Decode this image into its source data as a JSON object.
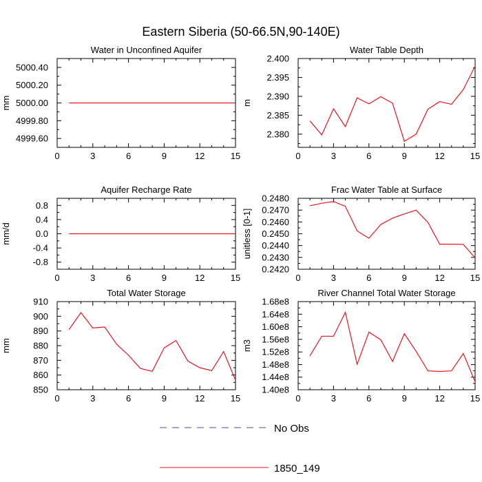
{
  "figure": {
    "title": "Eastern Siberia (50-66.5N,90-140E)",
    "legend": [
      {
        "label": "No Obs",
        "color": "#4a4aa6",
        "dashed": true
      },
      {
        "label": "1850_149",
        "color": "#e8141c",
        "dashed": false
      }
    ]
  },
  "chart_data": [
    {
      "type": "line",
      "title": "Water in Unconfined Aquifer",
      "ylabel": "mm",
      "xlim": [
        0,
        15
      ],
      "ylim": [
        4999.5,
        5000.5
      ],
      "xticks": [
        0,
        3,
        6,
        9,
        12,
        15
      ],
      "xtick_labels": [
        "0",
        "3",
        "6",
        "9",
        "12",
        "15"
      ],
      "yticks": [
        4999.6,
        4999.8,
        5000.0,
        5000.2,
        5000.4
      ],
      "ytick_labels": [
        "4999.60",
        "4999.80",
        "5000.00",
        "5000.20",
        "5000.40"
      ],
      "series": [
        {
          "name": "1850_149",
          "color": "#e8141c",
          "x": [
            1,
            2,
            3,
            4,
            5,
            6,
            7,
            8,
            9,
            10,
            11,
            12,
            13,
            14,
            15
          ],
          "y": [
            5000,
            5000,
            5000,
            5000,
            5000,
            5000,
            5000,
            5000,
            5000,
            5000,
            5000,
            5000,
            5000,
            5000,
            5000
          ]
        }
      ]
    },
    {
      "type": "line",
      "title": "Water Table Depth",
      "ylabel": "m",
      "xlim": [
        0,
        15
      ],
      "ylim": [
        2.3765,
        2.4
      ],
      "xticks": [
        0,
        3,
        6,
        9,
        12,
        15
      ],
      "xtick_labels": [
        "0",
        "3",
        "6",
        "9",
        "12",
        "15"
      ],
      "yticks": [
        2.38,
        2.385,
        2.39,
        2.395,
        2.4
      ],
      "ytick_labels": [
        "2.380",
        "2.385",
        "2.390",
        "2.395",
        "2.400"
      ],
      "series": [
        {
          "name": "1850_149",
          "color": "#e8141c",
          "x": [
            1,
            2,
            3,
            4,
            5,
            6,
            7,
            8,
            9,
            10,
            11,
            12,
            13,
            14,
            15
          ],
          "y": [
            2.3835,
            2.3798,
            2.3867,
            2.382,
            2.3896,
            2.388,
            2.3899,
            2.3882,
            2.3781,
            2.38,
            2.3866,
            2.3886,
            2.3879,
            2.3918,
            2.398
          ]
        }
      ]
    },
    {
      "type": "line",
      "title": "Aquifer Recharge Rate",
      "ylabel": "mm/d",
      "xlim": [
        0,
        15
      ],
      "ylim": [
        -1.0,
        1.0
      ],
      "xticks": [
        0,
        3,
        6,
        9,
        12,
        15
      ],
      "xtick_labels": [
        "0",
        "3",
        "6",
        "9",
        "12",
        "15"
      ],
      "yticks": [
        -0.8,
        -0.4,
        0,
        0.4,
        0.8
      ],
      "ytick_labels": [
        "-0.8",
        "-0.4",
        "0.0",
        "0.4",
        "0.8"
      ],
      "series": [
        {
          "name": "1850_149",
          "color": "#e8141c",
          "x": [
            1,
            2,
            3,
            4,
            5,
            6,
            7,
            8,
            9,
            10,
            11,
            12,
            13,
            14,
            15
          ],
          "y": [
            0,
            0,
            0,
            0,
            0,
            0,
            0,
            0,
            0,
            0,
            0,
            0,
            0,
            0,
            0
          ]
        }
      ]
    },
    {
      "type": "line",
      "title": "Frac Water Table at Surface",
      "ylabel": "unitless [0-1]",
      "xlim": [
        0,
        15
      ],
      "ylim": [
        0.242,
        0.248
      ],
      "xticks": [
        0,
        3,
        6,
        9,
        12,
        15
      ],
      "xtick_labels": [
        "0",
        "3",
        "6",
        "9",
        "12",
        "15"
      ],
      "yticks": [
        0.242,
        0.243,
        0.244,
        0.245,
        0.246,
        0.247,
        0.248
      ],
      "ytick_labels": [
        "0.2420",
        "0.2430",
        "0.2440",
        "0.2450",
        "0.2460",
        "0.2470",
        "0.2480"
      ],
      "series": [
        {
          "name": "1850_149",
          "color": "#e8141c",
          "x": [
            1,
            2,
            3,
            4,
            5,
            6,
            7,
            8,
            9,
            10,
            11,
            12,
            13,
            14,
            15
          ],
          "y": [
            0.24737,
            0.24758,
            0.24773,
            0.24732,
            0.24524,
            0.24462,
            0.24578,
            0.24632,
            0.24668,
            0.247,
            0.24596,
            0.24412,
            0.24412,
            0.2441,
            0.24296
          ]
        }
      ]
    },
    {
      "type": "line",
      "title": "Total Water Storage",
      "ylabel": "mm",
      "xlim": [
        0,
        15
      ],
      "ylim": [
        850,
        910
      ],
      "xticks": [
        0,
        3,
        6,
        9,
        12,
        15
      ],
      "xtick_labels": [
        "0",
        "3",
        "6",
        "9",
        "12",
        "15"
      ],
      "yticks": [
        850,
        860,
        870,
        880,
        890,
        900,
        910
      ],
      "ytick_labels": [
        "850",
        "860",
        "870",
        "880",
        "890",
        "900",
        "910"
      ],
      "series": [
        {
          "name": "1850_149",
          "color": "#e8141c",
          "x": [
            1,
            2,
            3,
            4,
            5,
            6,
            7,
            8,
            9,
            10,
            11,
            12,
            13,
            14,
            15
          ],
          "y": [
            891,
            902.5,
            892,
            892.7,
            881,
            873.5,
            864.5,
            862.5,
            878.5,
            883.5,
            869.5,
            865,
            863,
            876,
            856.5
          ]
        }
      ]
    },
    {
      "type": "line",
      "title": "River Channel Total Water Storage",
      "ylabel": "m3",
      "xlim": [
        0,
        15
      ],
      "ylim": [
        140000000,
        168000000
      ],
      "xticks": [
        0,
        3,
        6,
        9,
        12,
        15
      ],
      "xtick_labels": [
        "0",
        "3",
        "6",
        "9",
        "12",
        "15"
      ],
      "yticks": [
        140000000,
        144000000,
        148000000,
        152000000,
        156000000,
        160000000,
        164000000,
        168000000
      ],
      "ytick_labels": [
        "1.40e8",
        "1.44e8",
        "1.48e8",
        "1.52e8",
        "1.56e8",
        "1.60e8",
        "1.64e8",
        "1.68e8"
      ],
      "series": [
        {
          "name": "1850_149",
          "color": "#e8141c",
          "x": [
            1,
            2,
            3,
            4,
            5,
            6,
            7,
            8,
            9,
            10,
            11,
            12,
            13,
            14,
            15
          ],
          "y": [
            150800000,
            157000000,
            157000000,
            164600000,
            148100000,
            158300000,
            155900000,
            149000000,
            157800000,
            152200000,
            146000000,
            145800000,
            146000000,
            151500000,
            142500000
          ]
        }
      ]
    }
  ]
}
